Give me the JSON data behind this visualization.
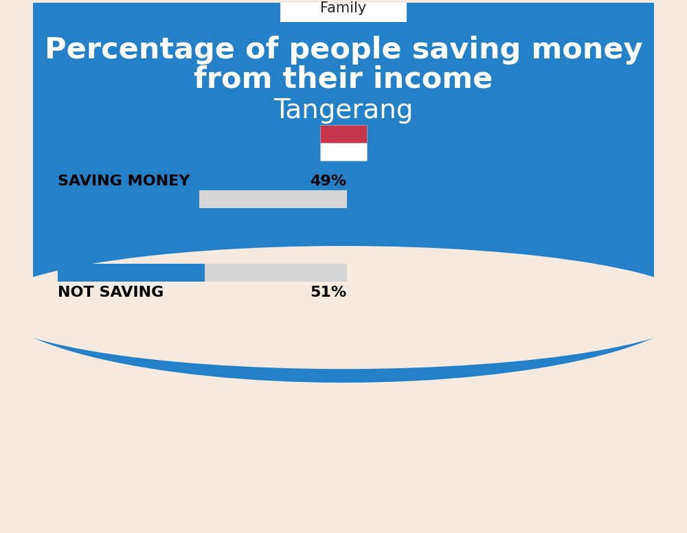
{
  "title_line1": "Percentage of people saving money",
  "title_line2": "from their income",
  "subtitle": "Tangerang",
  "category_label": "Family",
  "background_top": "#2481C8",
  "background_bottom": "#F5EAE0",
  "bar1_label": "SAVING MONEY",
  "bar1_value": 49,
  "bar1_pct": "49%",
  "bar2_label": "NOT SAVING",
  "bar2_value": 51,
  "bar2_pct": "51%",
  "bar_color": "#2481C8",
  "bar_bg_color": "#D5D5D5",
  "title_color": "#FFFFFF",
  "subtitle_color": "#FFFFFF",
  "label_color": "#000000",
  "category_box_color": "#FFFFFF",
  "flag_red": "#C8344A",
  "flag_white": "#FFFFFF"
}
